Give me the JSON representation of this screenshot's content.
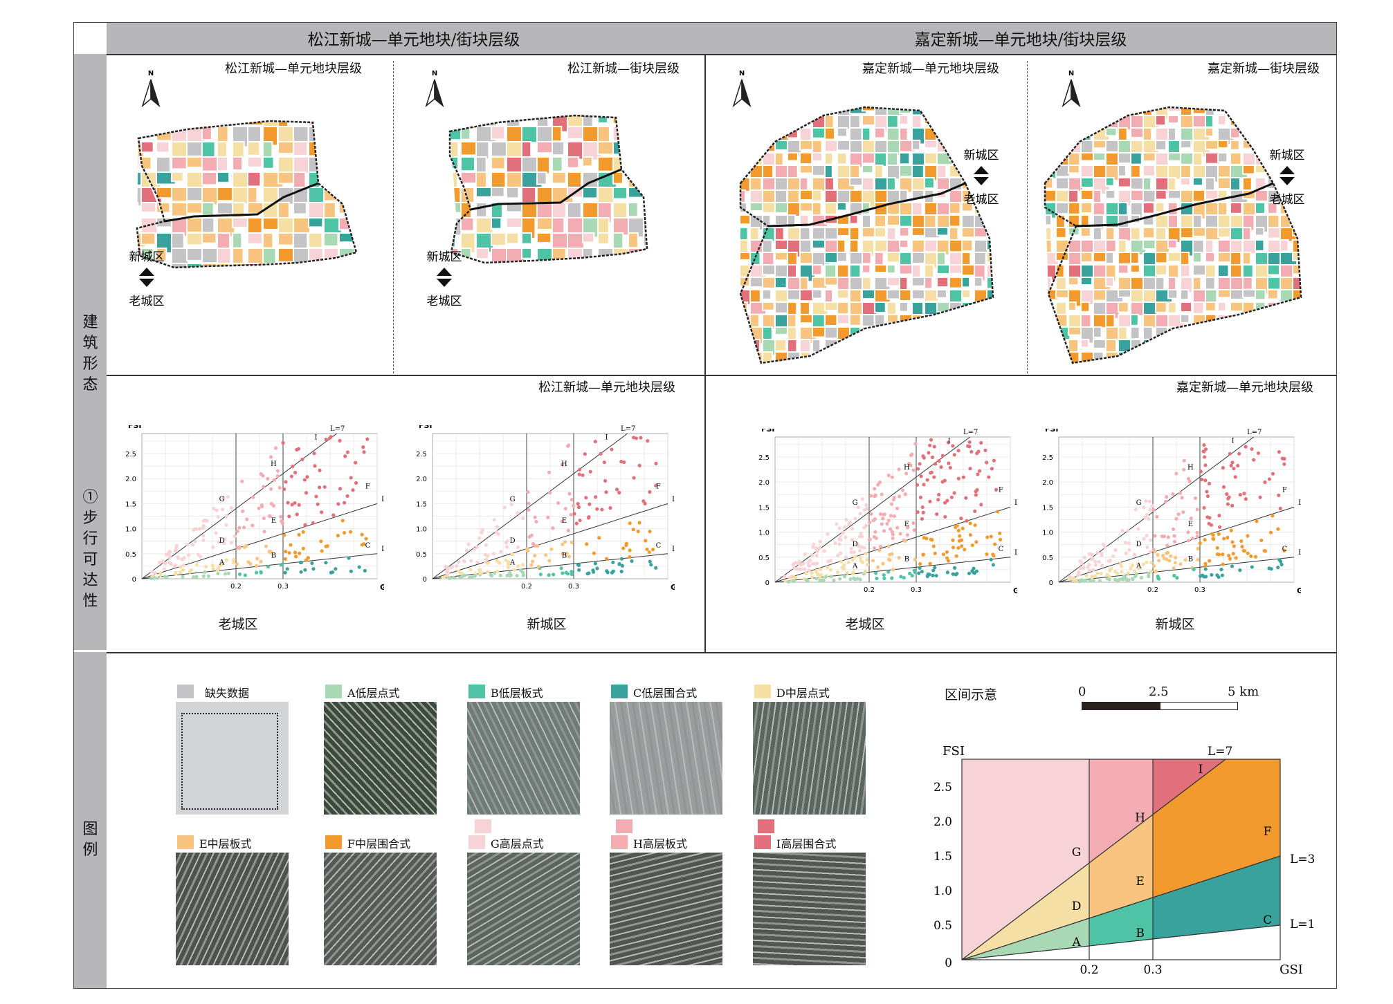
{
  "header": {
    "left_title": "松江新城—单元地块/街块层级",
    "right_title": "嘉定新城—单元地块/街块层级"
  },
  "side_labels": {
    "row1": "建筑形态",
    "row2": "①步行可达性",
    "row3": "图例"
  },
  "maps": {
    "north": "N",
    "new_label": "新城区",
    "old_label": "老城区",
    "songjiang_unit": "松江新城—单元地块层级",
    "songjiang_block": "松江新城—街块层级",
    "jiading_unit": "嘉定新城—单元地块层级",
    "jiading_block": "嘉定新城—街块层级"
  },
  "spacemate": {
    "songjiang_title": "松江新城—单元地块层级",
    "jiading_title": "嘉定新城—单元地块层级",
    "old_caption": "老城区",
    "new_caption": "新城区",
    "fsi_label": "FSI",
    "gsi_label": "GSI",
    "line_labels": [
      "L=7",
      "L=3",
      "L=1"
    ],
    "zone_letters": [
      "A",
      "B",
      "C",
      "D",
      "E",
      "F",
      "G",
      "H",
      "I"
    ],
    "y_ticks": [
      "0",
      "0.5",
      "1.0",
      "1.5",
      "2.0",
      "2.5"
    ],
    "x_ticks": [
      "0.2",
      "0.3"
    ]
  },
  "legend": {
    "items": [
      {
        "label": "缺失数据",
        "color": "#c4c4c6"
      },
      {
        "label": "A低层点式",
        "color": "#a9d8b4"
      },
      {
        "label": "B低层板式",
        "color": "#4fc4a4"
      },
      {
        "label": "C低层围合式",
        "color": "#3aa29c"
      },
      {
        "label": "D中层点式",
        "color": "#f5dfa4"
      },
      {
        "label": "E中层板式",
        "color": "#f8c580"
      },
      {
        "label": "F中层围合式",
        "color": "#f29a2e"
      },
      {
        "label": "G高层点式",
        "color": "#f8d3d6"
      },
      {
        "label": "H高层板式",
        "color": "#f3adb2"
      },
      {
        "label": "I高层围合式",
        "color": "#e2707a"
      }
    ],
    "interval_title": "区间示意",
    "scale_labels": [
      "0",
      "2.5",
      "5 km"
    ]
  },
  "chart_data": {
    "type": "area",
    "title": "区间示意",
    "xlabel": "GSI",
    "ylabel": "FSI",
    "x_ticks": [
      0.2,
      0.3
    ],
    "y_ticks": [
      0,
      0.5,
      1.0,
      1.5,
      2.0,
      2.5
    ],
    "xlim": [
      0,
      0.5
    ],
    "ylim": [
      0,
      2.9
    ],
    "boundaries": [
      {
        "name": "L=7",
        "slope": 7
      },
      {
        "name": "L=3",
        "slope": 3
      },
      {
        "name": "L=1",
        "slope": 1
      }
    ],
    "gsi_splits": [
      0.2,
      0.3
    ],
    "zones": [
      {
        "name": "A",
        "color": "#a9d8b4"
      },
      {
        "name": "B",
        "color": "#4fc4a4"
      },
      {
        "name": "C",
        "color": "#3aa29c"
      },
      {
        "name": "D",
        "color": "#f5dfa4"
      },
      {
        "name": "E",
        "color": "#f8c580"
      },
      {
        "name": "F",
        "color": "#f29a2e"
      },
      {
        "name": "G",
        "color": "#f8d3d6"
      },
      {
        "name": "H",
        "color": "#f3adb2"
      },
      {
        "name": "I",
        "color": "#e2707a"
      }
    ],
    "grid": false
  }
}
